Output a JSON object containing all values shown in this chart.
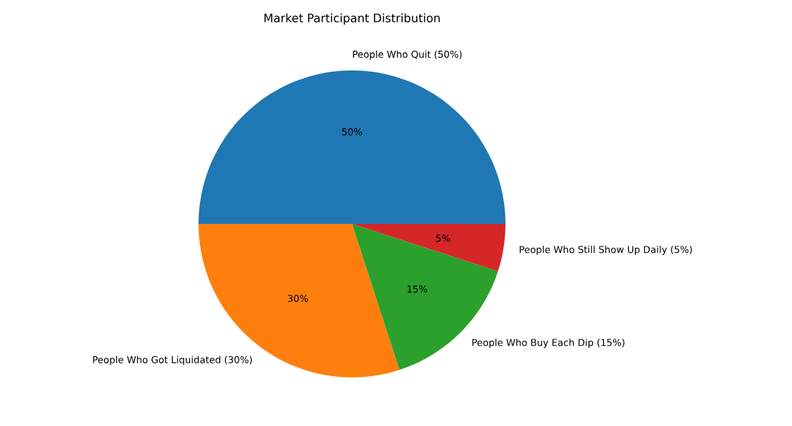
{
  "chart_data": {
    "type": "pie",
    "title": "Market Participant Distribution",
    "categories": [
      "People Who Quit (50%)",
      "People Who Got Liquidated (30%)",
      "People Who Buy Each Dip (15%)",
      "People Who Still Show Up Daily (5%)"
    ],
    "values": [
      50,
      30,
      15,
      5
    ],
    "colors": [
      "#1f77b4",
      "#ff7f0e",
      "#2ca02c",
      "#d62728"
    ],
    "value_labels": [
      "50%",
      "30%",
      "15%",
      "5%"
    ]
  }
}
